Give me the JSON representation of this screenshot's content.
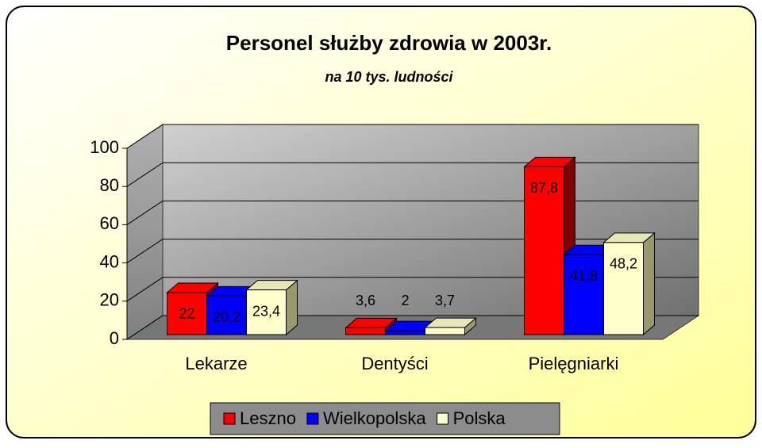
{
  "chart_data": {
    "type": "bar3d",
    "title": "Personel służby zdrowia w 2003r.",
    "subtitle": "na 10 tys. ludności",
    "categories": [
      "Lekarze",
      "Dentyści",
      "Pielęgniarki"
    ],
    "series": [
      {
        "name": "Leszno",
        "color": "#ff0000",
        "side": "#800000",
        "values": [
          22,
          3.6,
          87.8
        ],
        "value_labels": [
          "22",
          "3,6",
          "87,8"
        ]
      },
      {
        "name": "Wielkopolska",
        "color": "#0000ff",
        "side": "#000080",
        "values": [
          20.2,
          2,
          41.8
        ],
        "value_labels": [
          "20,2",
          "2",
          "41,8"
        ]
      },
      {
        "name": "Polska",
        "color": "#ffffcc",
        "side": "#99996b",
        "values": [
          23.4,
          3.7,
          48.2
        ],
        "value_labels": [
          "23,4",
          "3,7",
          "48,2"
        ]
      }
    ],
    "ylim": [
      0,
      100
    ],
    "yticks": [
      0,
      20,
      40,
      60,
      80,
      100
    ],
    "grid": true,
    "legend": "bottom"
  }
}
